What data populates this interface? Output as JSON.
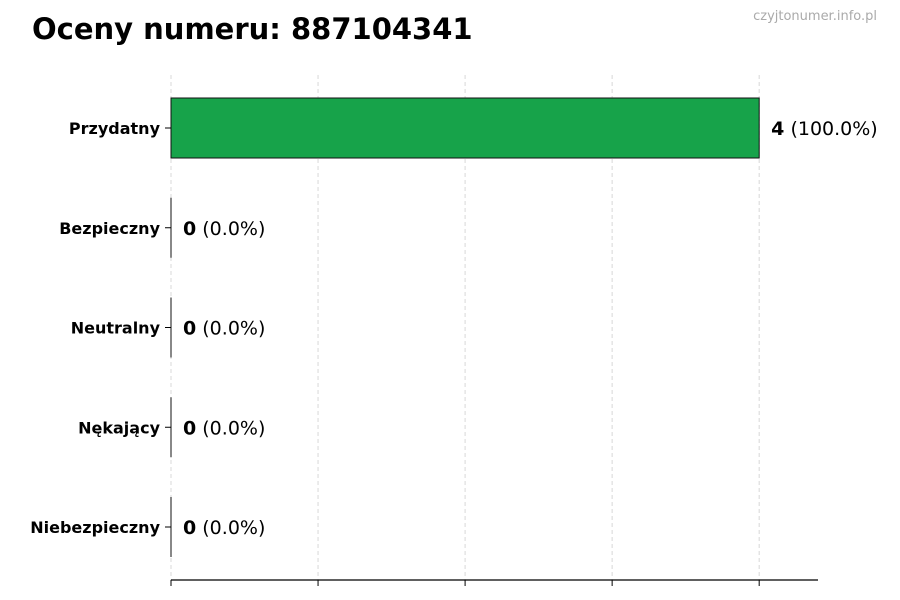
{
  "chart_data": {
    "type": "bar",
    "orientation": "horizontal",
    "title": "Oceny numeru: 887104341",
    "watermark": "czyjtonumer.info.pl",
    "categories": [
      "Przydatny",
      "Bezpieczny",
      "Neutralny",
      "Nękający",
      "Niebezpieczny"
    ],
    "values": [
      4,
      0,
      0,
      0,
      0
    ],
    "percent_labels": [
      "(100.0%)",
      "(0.0%)",
      "(0.0%)",
      "(0.0%)",
      "(0.0%)"
    ],
    "xlim": [
      0,
      4.4
    ],
    "xticks": [
      0,
      1,
      2,
      3,
      4
    ],
    "xtick_labels_shown": false,
    "grid": "x-dashed",
    "bar_color": "#17a34a",
    "xlabel": "",
    "ylabel": ""
  }
}
